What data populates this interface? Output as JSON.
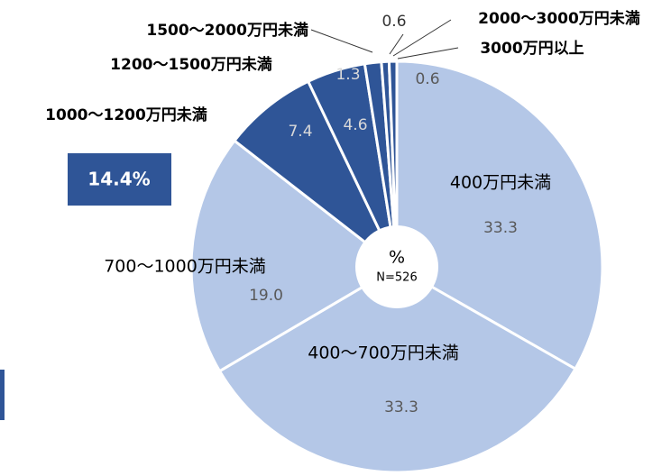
{
  "chart_data": {
    "type": "pie",
    "categories": [
      "400万円未満",
      "400～700万円未満",
      "700～1000万円未満",
      "1000～1200万円未満",
      "1200～1500万円未満",
      "1500～2000万円未満",
      "2000～3000万円未満",
      "3000万円以上"
    ],
    "values": [
      33.3,
      33.3,
      19.0,
      7.4,
      4.6,
      1.3,
      0.6,
      0.6
    ],
    "value_labels": [
      "33.3",
      "33.3",
      "19.0",
      "7.4",
      "4.6",
      "1.3",
      "0.6",
      "0.6"
    ],
    "colors": [
      "#b4c7e7",
      "#b4c7e7",
      "#b4c7e7",
      "#2f5597",
      "#2f5597",
      "#2f5597",
      "#2f5597",
      "#2f5597"
    ],
    "center_label": "%",
    "n_label": "N=526",
    "annotation": "14.4%"
  }
}
